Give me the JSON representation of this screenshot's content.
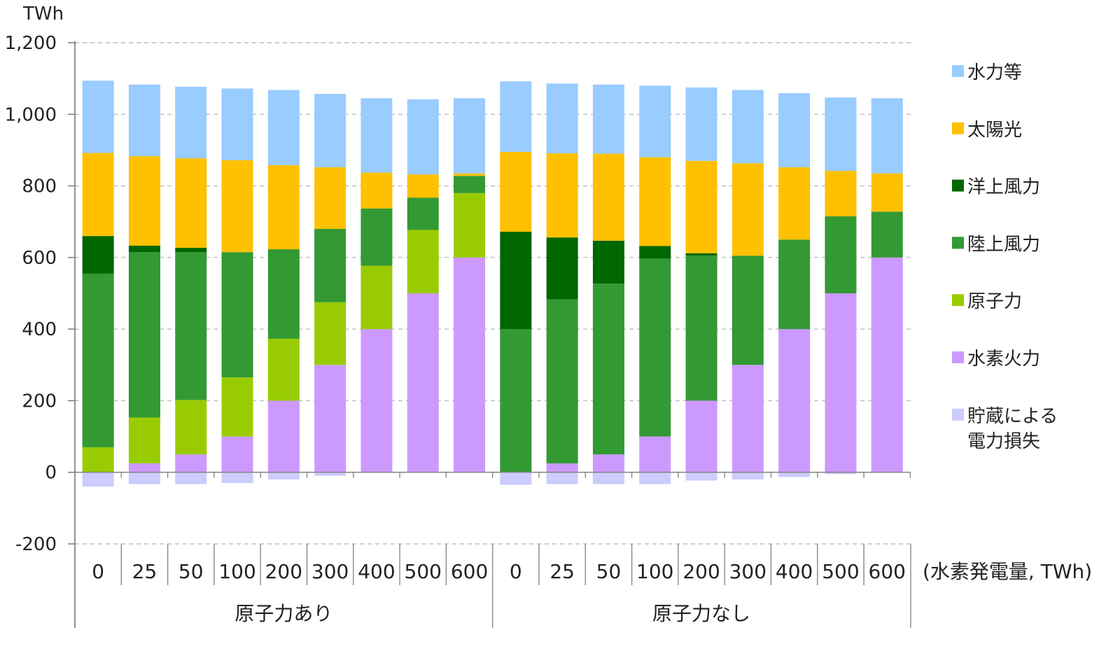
{
  "chart_data": {
    "type": "bar",
    "stacked": true,
    "ylabel": "TWh",
    "ylim": [
      -200,
      1200
    ],
    "yticks": [
      -200,
      0,
      200,
      400,
      600,
      800,
      1000,
      1200
    ],
    "ytick_labels": [
      "-200",
      "0",
      "200",
      "400",
      "600",
      "800",
      "1,000",
      "1,200"
    ],
    "grid": "horizontal dashed",
    "legend_position": "right",
    "x_unit_label": "(水素発電量, TWh)",
    "groups": [
      {
        "label": "原子力あり",
        "categories": [
          "0",
          "25",
          "50",
          "100",
          "200",
          "300",
          "400",
          "500",
          "600"
        ]
      },
      {
        "label": "原子力なし",
        "categories": [
          "0",
          "25",
          "50",
          "100",
          "200",
          "300",
          "400",
          "500",
          "600"
        ]
      }
    ],
    "series": [
      {
        "name": "貯蔵による電力損失",
        "color": "#ccccff",
        "values": [
          -40,
          -33,
          -33,
          -30,
          -20,
          -10,
          0,
          0,
          0,
          -35,
          -33,
          -33,
          -33,
          -23,
          -20,
          -13,
          -5,
          0
        ]
      },
      {
        "name": "水素火力",
        "color": "#cc99ff",
        "values": [
          0,
          25,
          50,
          100,
          200,
          300,
          400,
          500,
          600,
          0,
          25,
          50,
          100,
          200,
          300,
          400,
          500,
          600
        ]
      },
      {
        "name": "原子力",
        "color": "#99cc00",
        "values": [
          70,
          128,
          152,
          165,
          173,
          175,
          177,
          177,
          180,
          0,
          0,
          0,
          0,
          0,
          0,
          0,
          0,
          0
        ]
      },
      {
        "name": "陸上風力",
        "color": "#339933",
        "values": [
          485,
          462,
          413,
          350,
          250,
          205,
          160,
          90,
          48,
          400,
          458,
          477,
          497,
          405,
          305,
          250,
          215,
          128
        ]
      },
      {
        "name": "洋上風力",
        "color": "#006600",
        "values": [
          105,
          18,
          12,
          0,
          0,
          0,
          0,
          0,
          0,
          272,
          173,
          120,
          35,
          7,
          0,
          0,
          0,
          0
        ]
      },
      {
        "name": "太陽光",
        "color": "#ffc000",
        "values": [
          232,
          250,
          250,
          257,
          235,
          172,
          100,
          65,
          7,
          223,
          235,
          243,
          248,
          258,
          258,
          202,
          127,
          107
        ]
      },
      {
        "name": "水力等",
        "color": "#99ccff",
        "values": [
          202,
          200,
          200,
          200,
          210,
          205,
          208,
          210,
          210,
          197,
          195,
          193,
          200,
          205,
          205,
          207,
          205,
          210
        ]
      }
    ],
    "legend_order": [
      "水力等",
      "太陽光",
      "洋上風力",
      "陸上風力",
      "原子力",
      "水素火力",
      "貯蔵による電力損失"
    ],
    "legend_lines": {
      "貯蔵による電力損失": [
        "貯蔵による",
        "電力損失"
      ]
    }
  }
}
